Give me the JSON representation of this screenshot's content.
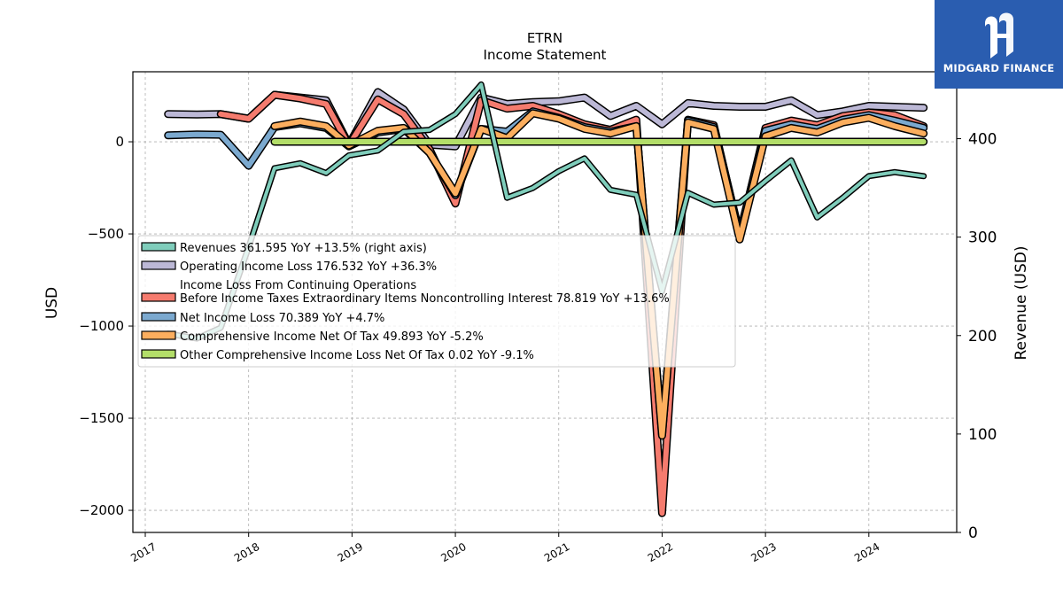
{
  "brand": {
    "name": "MIDGARD FINANCE",
    "bg": "#2a5db0"
  },
  "chart_data": {
    "type": "line",
    "title": "ETRN",
    "subtitle": "Income Statement",
    "ylabel": "USD",
    "y2label": "Revenue (USD)",
    "ylim": [
      -2120,
      380
    ],
    "y2lim": [
      0,
      468
    ],
    "yticks": [
      0,
      -500,
      -1000,
      -1500,
      -2000
    ],
    "ytick_labels": [
      "0",
      "−500",
      "−1000",
      "−1500",
      "−2000"
    ],
    "y2ticks": [
      0,
      100,
      200,
      300,
      400
    ],
    "y2tick_labels": [
      "0",
      "100",
      "200",
      "300",
      "400"
    ],
    "xlim": [
      2016.88,
      2024.85
    ],
    "xticks": [
      2017,
      2018,
      2019,
      2020,
      2021,
      2022,
      2023,
      2024
    ],
    "xtick_labels": [
      "2017",
      "2018",
      "2019",
      "2020",
      "2021",
      "2022",
      "2023",
      "2024"
    ],
    "grid": true,
    "legend_position": "center-left",
    "series": [
      {
        "name": "Operating Income Loss",
        "legend": "Operating Income Loss  176.532 YoY +36.3%",
        "color": "#bcb8d6",
        "axis": "left",
        "stroke": 6,
        "points": [
          [
            2017.22,
            150
          ],
          [
            2017.5,
            148
          ],
          [
            2017.73,
            150
          ],
          [
            2018.0,
            125
          ],
          [
            2018.25,
            255
          ],
          [
            2018.5,
            240
          ],
          [
            2018.75,
            225
          ],
          [
            2018.97,
            -15
          ],
          [
            2019.25,
            270
          ],
          [
            2019.5,
            175
          ],
          [
            2019.75,
            -15
          ],
          [
            2020.0,
            -25
          ],
          [
            2020.25,
            240
          ],
          [
            2020.5,
            205
          ],
          [
            2020.75,
            215
          ],
          [
            2021.0,
            220
          ],
          [
            2021.25,
            240
          ],
          [
            2021.5,
            140
          ],
          [
            2021.75,
            195
          ],
          [
            2022.0,
            95
          ],
          [
            2022.25,
            210
          ],
          [
            2022.5,
            195
          ],
          [
            2022.75,
            190
          ],
          [
            2023.0,
            190
          ],
          [
            2023.25,
            225
          ],
          [
            2023.5,
            145
          ],
          [
            2023.75,
            165
          ],
          [
            2024.0,
            195
          ],
          [
            2024.25,
            190
          ],
          [
            2024.53,
            185
          ]
        ]
      },
      {
        "name": "Income Loss From Continuing Operations Before Income Taxes Extraordinary Items Noncontrolling Interest",
        "legend_lines": [
          "Income Loss From Continuing Operations",
          "Before Income Taxes Extraordinary Items Noncontrolling Interest  78.819 YoY +13.6%"
        ],
        "color": "#f57b6e",
        "axis": "left",
        "stroke": 6,
        "points": [
          [
            2017.73,
            150
          ],
          [
            2018.0,
            125
          ],
          [
            2018.25,
            255
          ],
          [
            2018.5,
            235
          ],
          [
            2018.75,
            205
          ],
          [
            2018.97,
            -20
          ],
          [
            2019.25,
            230
          ],
          [
            2019.5,
            150
          ],
          [
            2019.75,
            -40
          ],
          [
            2020.0,
            -335
          ],
          [
            2020.25,
            225
          ],
          [
            2020.5,
            180
          ],
          [
            2020.75,
            195
          ],
          [
            2021.0,
            150
          ],
          [
            2021.25,
            95
          ],
          [
            2021.5,
            65
          ],
          [
            2021.75,
            120
          ],
          [
            2022.0,
            -2015
          ],
          [
            2022.25,
            120
          ],
          [
            2022.5,
            90
          ],
          [
            2022.75,
            -510
          ],
          [
            2023.0,
            75
          ],
          [
            2023.25,
            115
          ],
          [
            2023.5,
            90
          ],
          [
            2023.75,
            140
          ],
          [
            2024.0,
            160
          ],
          [
            2024.25,
            145
          ],
          [
            2024.53,
            85
          ]
        ]
      },
      {
        "name": "Net Income Loss",
        "legend": "Net Income Loss  70.389 YoY +4.7%",
        "color": "#7ba9cf",
        "axis": "left",
        "stroke": 6,
        "points": [
          [
            2017.22,
            35
          ],
          [
            2017.5,
            40
          ],
          [
            2017.73,
            38
          ],
          [
            2018.0,
            -130
          ],
          [
            2018.25,
            80
          ],
          [
            2018.5,
            100
          ],
          [
            2018.75,
            75
          ],
          [
            2018.97,
            -25
          ],
          [
            2019.25,
            50
          ],
          [
            2019.5,
            70
          ],
          [
            2019.75,
            -60
          ],
          [
            2020.0,
            -290
          ],
          [
            2020.25,
            70
          ],
          [
            2020.5,
            55
          ],
          [
            2020.75,
            165
          ],
          [
            2021.0,
            130
          ],
          [
            2021.25,
            80
          ],
          [
            2021.5,
            55
          ],
          [
            2021.75,
            85
          ],
          [
            2022.0,
            -1590
          ],
          [
            2022.25,
            115
          ],
          [
            2022.5,
            80
          ],
          [
            2022.75,
            -500
          ],
          [
            2023.0,
            60
          ],
          [
            2023.25,
            95
          ],
          [
            2023.5,
            70
          ],
          [
            2023.75,
            120
          ],
          [
            2024.0,
            145
          ],
          [
            2024.25,
            115
          ],
          [
            2024.53,
            75
          ]
        ]
      },
      {
        "name": "Comprehensive Income Net Of Tax",
        "legend": "Comprehensive Income Net Of Tax  49.893 YoY -5.2%",
        "color": "#fcae5e",
        "axis": "left",
        "stroke": 6,
        "points": [
          [
            2018.25,
            85
          ],
          [
            2018.5,
            110
          ],
          [
            2018.75,
            85
          ],
          [
            2018.97,
            -20
          ],
          [
            2019.25,
            60
          ],
          [
            2019.5,
            75
          ],
          [
            2019.75,
            -60
          ],
          [
            2020.0,
            -280
          ],
          [
            2020.25,
            70
          ],
          [
            2020.5,
            20
          ],
          [
            2020.75,
            155
          ],
          [
            2021.0,
            125
          ],
          [
            2021.25,
            70
          ],
          [
            2021.5,
            45
          ],
          [
            2021.75,
            85
          ],
          [
            2022.0,
            -1595
          ],
          [
            2022.25,
            105
          ],
          [
            2022.5,
            70
          ],
          [
            2022.75,
            -530
          ],
          [
            2023.0,
            30
          ],
          [
            2023.25,
            75
          ],
          [
            2023.5,
            50
          ],
          [
            2023.75,
            105
          ],
          [
            2024.0,
            130
          ],
          [
            2024.25,
            85
          ],
          [
            2024.53,
            45
          ]
        ]
      },
      {
        "name": "Other Comprehensive Income Loss Net Of Tax",
        "legend": "Other Comprehensive Income Loss Net Of Tax  0.02 YoY -9.1%",
        "color": "#b3de69",
        "axis": "left",
        "stroke": 6,
        "points": [
          [
            2018.25,
            0
          ],
          [
            2018.5,
            0
          ],
          [
            2018.75,
            0
          ],
          [
            2018.97,
            0
          ],
          [
            2019.25,
            0
          ],
          [
            2019.5,
            0
          ],
          [
            2019.75,
            0
          ],
          [
            2020.0,
            0
          ],
          [
            2020.25,
            0
          ],
          [
            2020.5,
            0
          ],
          [
            2020.75,
            0
          ],
          [
            2021.0,
            0
          ],
          [
            2021.25,
            0
          ],
          [
            2021.5,
            0
          ],
          [
            2021.75,
            0
          ],
          [
            2022.0,
            0
          ],
          [
            2022.25,
            0
          ],
          [
            2022.5,
            0
          ],
          [
            2022.75,
            0
          ],
          [
            2023.0,
            0
          ],
          [
            2023.25,
            0
          ],
          [
            2023.5,
            0
          ],
          [
            2023.75,
            0
          ],
          [
            2024.0,
            0
          ],
          [
            2024.25,
            0
          ],
          [
            2024.53,
            0
          ]
        ]
      },
      {
        "name": "Revenues",
        "legend": "Revenues  361.595 YoY +13.5% (right axis)",
        "color": "#7fcdbb",
        "axis": "right",
        "stroke": 4,
        "points": [
          [
            2017.22,
            202
          ],
          [
            2017.5,
            197
          ],
          [
            2017.73,
            208
          ],
          [
            2018.0,
            290
          ],
          [
            2018.25,
            370
          ],
          [
            2018.5,
            375
          ],
          [
            2018.75,
            365
          ],
          [
            2018.97,
            383
          ],
          [
            2019.25,
            388
          ],
          [
            2019.5,
            407
          ],
          [
            2019.75,
            409
          ],
          [
            2020.0,
            425
          ],
          [
            2020.25,
            455
          ],
          [
            2020.5,
            340
          ],
          [
            2020.75,
            350
          ],
          [
            2021.0,
            367
          ],
          [
            2021.25,
            380
          ],
          [
            2021.5,
            348
          ],
          [
            2021.75,
            343
          ],
          [
            2022.0,
            245
          ],
          [
            2022.25,
            345
          ],
          [
            2022.5,
            333
          ],
          [
            2022.75,
            335
          ],
          [
            2023.0,
            357
          ],
          [
            2023.25,
            378
          ],
          [
            2023.5,
            320
          ],
          [
            2023.75,
            340
          ],
          [
            2024.0,
            362
          ],
          [
            2024.25,
            366
          ],
          [
            2024.53,
            362
          ]
        ]
      }
    ]
  }
}
